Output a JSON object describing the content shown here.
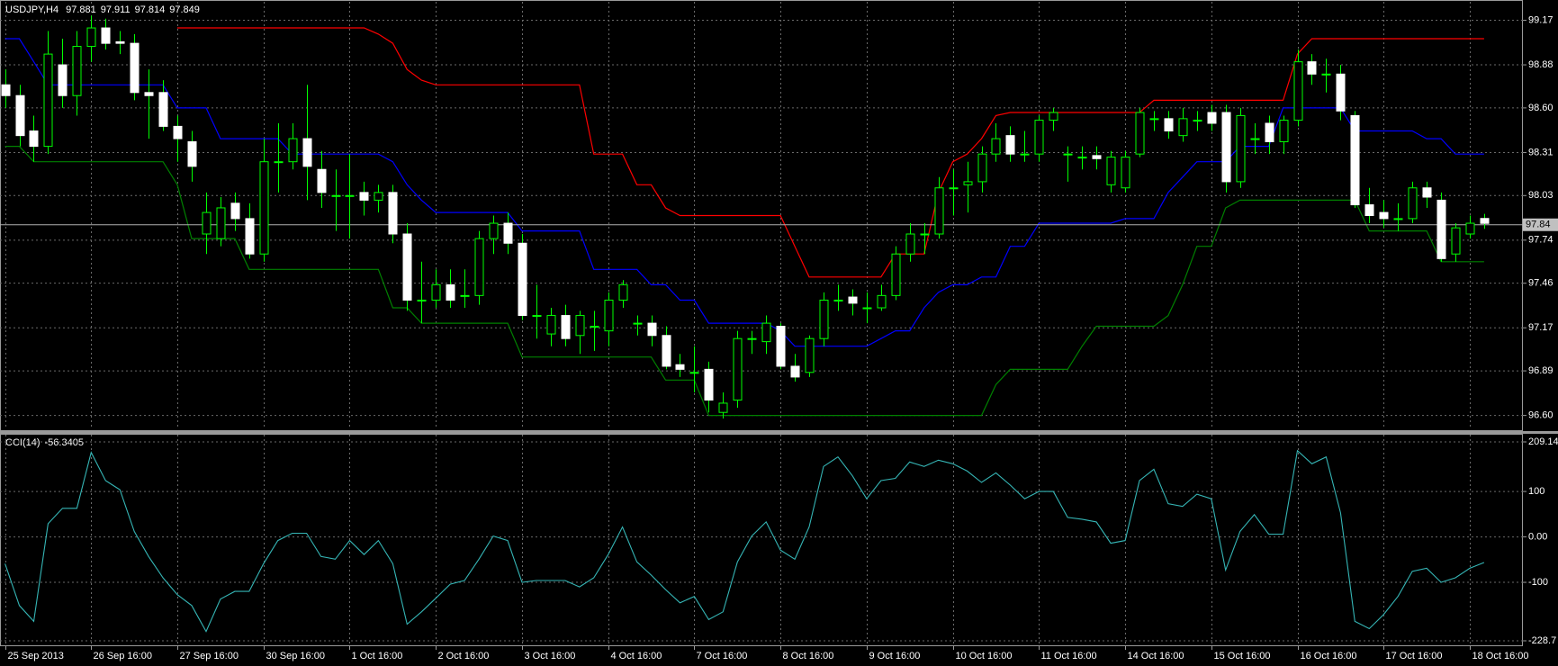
{
  "chart_data": {
    "type": "candlestick",
    "title": "USDJPY,H4",
    "open": [
      98.75,
      98.68,
      98.45,
      98.35,
      98.88,
      98.68,
      99.0,
      99.12,
      99.03,
      99.02,
      98.7,
      98.7,
      98.48,
      98.38,
      97.78,
      97.75,
      97.98,
      97.88,
      97.65,
      98.25,
      98.25,
      98.4,
      98.2,
      98.03,
      98.03,
      98.05,
      98.0,
      98.05,
      97.78,
      97.35,
      97.35,
      97.45,
      97.38,
      97.38,
      97.75,
      97.85,
      97.72,
      97.25,
      97.13,
      97.25,
      97.12,
      97.18,
      97.15,
      97.35,
      97.2,
      97.2,
      97.12,
      96.93,
      96.88,
      96.9,
      96.62,
      96.7,
      97.1,
      97.08,
      97.18,
      96.92,
      96.88,
      97.1,
      97.35,
      97.37,
      97.3,
      97.3,
      97.38,
      97.65,
      97.78,
      97.78,
      98.08,
      98.1,
      98.12,
      98.3,
      98.42,
      98.3,
      98.3,
      98.52,
      98.3,
      98.28,
      98.29,
      98.1,
      98.08,
      98.3,
      98.53,
      98.53,
      98.42,
      98.52,
      98.57,
      98.57,
      98.12,
      98.4,
      98.5,
      98.38,
      98.52,
      98.9,
      98.82,
      98.82,
      98.55,
      97.97,
      97.92,
      97.88,
      97.88,
      98.08,
      98.0,
      97.65,
      97.78,
      97.881
    ],
    "high": [
      98.85,
      98.75,
      98.55,
      99.1,
      99.05,
      99.1,
      99.2,
      99.18,
      99.1,
      99.08,
      98.85,
      98.78,
      98.55,
      98.45,
      98.05,
      98.02,
      98.05,
      97.98,
      98.4,
      98.5,
      98.5,
      98.75,
      98.32,
      98.2,
      98.3,
      98.12,
      98.1,
      98.1,
      97.85,
      97.6,
      97.55,
      97.55,
      97.55,
      97.8,
      97.9,
      97.92,
      97.78,
      97.45,
      97.3,
      97.32,
      97.28,
      97.28,
      97.4,
      97.48,
      97.25,
      97.25,
      97.18,
      97.0,
      97.05,
      96.95,
      96.75,
      97.15,
      97.15,
      97.25,
      97.2,
      97.0,
      97.12,
      97.4,
      97.45,
      97.42,
      97.4,
      97.45,
      97.7,
      97.85,
      97.85,
      98.15,
      98.2,
      98.25,
      98.35,
      98.5,
      98.48,
      98.45,
      98.55,
      98.6,
      98.35,
      98.35,
      98.35,
      98.32,
      98.32,
      98.6,
      98.58,
      98.58,
      98.6,
      98.58,
      98.62,
      98.62,
      98.6,
      98.5,
      98.55,
      98.55,
      98.98,
      98.95,
      98.92,
      98.88,
      98.58,
      98.08,
      98.0,
      97.98,
      98.12,
      98.12,
      98.05,
      97.85,
      97.9,
      97.911
    ],
    "low": [
      98.6,
      98.35,
      98.25,
      98.3,
      98.6,
      98.55,
      98.9,
      98.98,
      98.95,
      98.65,
      98.4,
      98.45,
      98.25,
      98.12,
      97.65,
      97.7,
      97.8,
      97.62,
      97.6,
      98.05,
      98.2,
      98.0,
      97.95,
      97.8,
      97.75,
      97.9,
      97.92,
      97.72,
      97.28,
      97.2,
      97.3,
      97.3,
      97.3,
      97.32,
      97.65,
      97.65,
      97.22,
      97.1,
      97.05,
      97.05,
      97.0,
      97.02,
      97.05,
      97.3,
      97.12,
      97.05,
      96.9,
      96.85,
      96.75,
      96.62,
      96.58,
      96.65,
      97.0,
      97.0,
      96.9,
      96.82,
      96.85,
      97.05,
      97.28,
      97.25,
      97.2,
      97.28,
      97.35,
      97.6,
      97.65,
      97.75,
      97.9,
      97.92,
      98.05,
      98.25,
      98.25,
      98.25,
      98.25,
      98.45,
      98.12,
      98.2,
      98.2,
      98.05,
      98.05,
      98.28,
      98.45,
      98.4,
      98.38,
      98.45,
      98.45,
      98.05,
      98.08,
      98.3,
      98.3,
      98.3,
      98.48,
      98.75,
      98.7,
      98.52,
      97.95,
      97.85,
      97.82,
      97.8,
      97.85,
      97.95,
      97.6,
      97.6,
      97.75,
      97.814
    ],
    "close": [
      98.68,
      98.42,
      98.35,
      98.95,
      98.68,
      99.0,
      99.12,
      99.02,
      99.02,
      98.7,
      98.68,
      98.48,
      98.4,
      98.22,
      97.92,
      97.95,
      97.88,
      97.65,
      98.25,
      98.25,
      98.4,
      98.22,
      98.05,
      98.03,
      98.03,
      98.0,
      98.05,
      97.78,
      97.35,
      97.35,
      97.45,
      97.35,
      97.38,
      97.75,
      97.85,
      97.72,
      97.25,
      97.25,
      97.25,
      97.1,
      97.25,
      97.18,
      97.35,
      97.45,
      97.2,
      97.12,
      96.92,
      96.9,
      96.88,
      96.7,
      96.68,
      97.1,
      97.1,
      97.2,
      96.92,
      96.85,
      97.1,
      97.35,
      97.35,
      97.33,
      97.3,
      97.38,
      97.65,
      97.78,
      97.78,
      98.08,
      98.08,
      98.12,
      98.3,
      98.4,
      98.3,
      98.3,
      98.52,
      98.57,
      98.3,
      98.28,
      98.27,
      98.28,
      98.28,
      98.57,
      98.53,
      98.45,
      98.53,
      98.52,
      98.5,
      98.12,
      98.55,
      98.4,
      98.38,
      98.52,
      98.9,
      98.82,
      98.82,
      98.58,
      97.97,
      97.9,
      97.88,
      97.88,
      98.08,
      98.02,
      97.62,
      97.82,
      97.85,
      97.849
    ],
    "up_color": "#00ff00",
    "down_color": "#ffffff",
    "bid_price": 97.84,
    "channels": [
      {
        "color": "#ff0000",
        "values": [
          null,
          null,
          null,
          null,
          null,
          null,
          null,
          null,
          null,
          null,
          null,
          null,
          99.12,
          99.12,
          99.12,
          99.12,
          99.12,
          99.12,
          99.12,
          99.12,
          99.12,
          99.12,
          99.12,
          99.12,
          99.12,
          99.12,
          99.08,
          99.02,
          98.85,
          98.78,
          98.75,
          98.75,
          98.75,
          98.75,
          98.75,
          98.75,
          98.75,
          98.75,
          98.75,
          98.75,
          98.75,
          98.3,
          98.3,
          98.3,
          98.1,
          98.1,
          97.95,
          97.9,
          97.9,
          97.9,
          97.9,
          97.9,
          97.9,
          97.9,
          97.9,
          97.7,
          97.5,
          97.5,
          97.5,
          97.5,
          97.5,
          97.5,
          97.65,
          97.65,
          97.65,
          98.05,
          98.25,
          98.3,
          98.4,
          98.55,
          98.57,
          98.57,
          98.57,
          98.57,
          98.57,
          98.57,
          98.57,
          98.57,
          98.57,
          98.57,
          98.65,
          98.65,
          98.65,
          98.65,
          98.65,
          98.65,
          98.65,
          98.65,
          98.65,
          98.65,
          98.95,
          99.05,
          99.05,
          99.05,
          99.05,
          99.05,
          99.05,
          99.05,
          99.05,
          99.05,
          99.05,
          99.05,
          99.05,
          99.05
        ]
      },
      {
        "color": "#0000ff",
        "values": [
          99.05,
          99.05,
          98.9,
          98.75,
          98.75,
          98.75,
          98.75,
          98.75,
          98.75,
          98.75,
          98.75,
          98.75,
          98.6,
          98.6,
          98.6,
          98.4,
          98.4,
          98.4,
          98.4,
          98.4,
          98.3,
          98.3,
          98.3,
          98.3,
          98.3,
          98.3,
          98.3,
          98.25,
          98.1,
          98.0,
          97.92,
          97.92,
          97.92,
          97.92,
          97.92,
          97.92,
          97.8,
          97.8,
          97.8,
          97.8,
          97.8,
          97.55,
          97.55,
          97.55,
          97.55,
          97.45,
          97.45,
          97.35,
          97.35,
          97.2,
          97.2,
          97.2,
          97.2,
          97.2,
          97.15,
          97.05,
          97.05,
          97.05,
          97.05,
          97.05,
          97.05,
          97.1,
          97.15,
          97.15,
          97.3,
          97.4,
          97.45,
          97.45,
          97.5,
          97.5,
          97.7,
          97.7,
          97.85,
          97.85,
          97.85,
          97.85,
          97.85,
          97.85,
          97.88,
          97.88,
          97.88,
          98.05,
          98.15,
          98.25,
          98.25,
          98.25,
          98.35,
          98.35,
          98.35,
          98.6,
          98.6,
          98.6,
          98.6,
          98.6,
          98.45,
          98.45,
          98.45,
          98.45,
          98.45,
          98.4,
          98.4,
          98.3,
          98.3,
          98.3
        ]
      },
      {
        "color": "#008000",
        "values": [
          98.35,
          98.35,
          98.25,
          98.25,
          98.25,
          98.25,
          98.25,
          98.25,
          98.25,
          98.25,
          98.25,
          98.25,
          98.1,
          97.75,
          97.75,
          97.75,
          97.75,
          97.55,
          97.55,
          97.55,
          97.55,
          97.55,
          97.55,
          97.55,
          97.55,
          97.55,
          97.55,
          97.3,
          97.3,
          97.2,
          97.2,
          97.2,
          97.2,
          97.2,
          97.2,
          97.2,
          96.98,
          96.98,
          96.98,
          96.98,
          96.98,
          96.98,
          96.98,
          96.98,
          96.98,
          96.98,
          96.83,
          96.83,
          96.83,
          96.6,
          96.6,
          96.6,
          96.6,
          96.6,
          96.6,
          96.6,
          96.6,
          96.6,
          96.6,
          96.6,
          96.6,
          96.6,
          96.6,
          96.6,
          96.6,
          96.6,
          96.6,
          96.6,
          96.6,
          96.8,
          96.9,
          96.9,
          96.9,
          96.9,
          96.9,
          97.05,
          97.18,
          97.18,
          97.18,
          97.18,
          97.18,
          97.25,
          97.45,
          97.7,
          97.7,
          97.95,
          98.0,
          98.0,
          98.0,
          98.0,
          98.0,
          98.0,
          98.0,
          98.0,
          98.0,
          97.8,
          97.8,
          97.8,
          97.8,
          97.8,
          97.6,
          97.6,
          97.6,
          97.6
        ]
      }
    ],
    "xlim": [
      -0.35,
      105.7
    ],
    "xticks": [
      {
        "value": 0,
        "label": "25 Sep 2013"
      },
      {
        "value": 6,
        "label": "26 Sep 16:00"
      },
      {
        "value": 12,
        "label": "27 Sep 16:00"
      },
      {
        "value": 18,
        "label": "30 Sep 16:00"
      },
      {
        "value": 24,
        "label": "1 Oct 16:00"
      },
      {
        "value": 30,
        "label": "2 Oct 16:00"
      },
      {
        "value": 36,
        "label": "3 Oct 16:00"
      },
      {
        "value": 42,
        "label": "4 Oct 16:00"
      },
      {
        "value": 48,
        "label": "7 Oct 16:00"
      },
      {
        "value": 54,
        "label": "8 Oct 16:00"
      },
      {
        "value": 60,
        "label": "9 Oct 16:00"
      },
      {
        "value": 66,
        "label": "10 Oct 16:00"
      },
      {
        "value": 72,
        "label": "11 Oct 16:00"
      },
      {
        "value": 78,
        "label": "14 Oct 16:00"
      },
      {
        "value": 84,
        "label": "15 Oct 16:00"
      },
      {
        "value": 90,
        "label": "16 Oct 16:00"
      },
      {
        "value": 96,
        "label": "17 Oct 16:00"
      },
      {
        "value": 102,
        "label": "18 Oct 16:00"
      }
    ],
    "ylim": [
      96.51,
      99.29
    ],
    "yticks": [
      99.17,
      98.88,
      {
        "value": 98.6,
        "label": "98.60"
      },
      98.31,
      98.03,
      97.74,
      97.46,
      97.17,
      96.89,
      {
        "value": 96.6,
        "label": "96.60"
      }
    ],
    "grid": true,
    "indicator": {
      "type": "line",
      "title": "CCI(14)",
      "color": "#35b5b5",
      "values": [
        -59,
        -151,
        -186,
        29,
        63,
        63,
        186,
        124,
        104,
        12,
        -43,
        -90,
        -127,
        -151,
        -208,
        -137,
        -120,
        -120,
        -59,
        -8,
        8,
        8,
        -43,
        -49,
        -8,
        -39,
        -8,
        -59,
        -192,
        -165,
        -135,
        -104,
        -96,
        -49,
        2,
        -8,
        -100,
        -96,
        -96,
        -96,
        -110,
        -90,
        -39,
        22,
        -55,
        -84,
        -116,
        -145,
        -131,
        -182,
        -165,
        -55,
        2,
        33,
        -29,
        -49,
        22,
        155,
        176,
        135,
        84,
        124,
        129,
        165,
        155,
        169,
        161,
        145,
        120,
        141,
        114,
        84,
        100,
        100,
        43,
        39,
        33,
        -14,
        -8,
        124,
        149,
        73,
        67,
        94,
        84,
        -73,
        12,
        49,
        6,
        6,
        190,
        161,
        176,
        53,
        -186,
        -202,
        -171,
        -131,
        -76,
        -69,
        -100,
        -90,
        -69,
        -56.3405
      ],
      "ylim": [
        -228.7,
        209.14
      ],
      "yticks": [
        209.14,
        100,
        {
          "value": 0,
          "label": "0.00"
        },
        -100,
        -228.7
      ]
    }
  }
}
